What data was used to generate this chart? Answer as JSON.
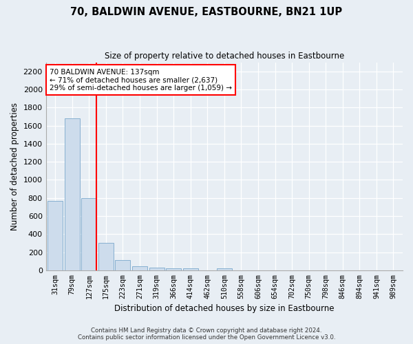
{
  "title": "70, BALDWIN AVENUE, EASTBOURNE, BN21 1UP",
  "subtitle": "Size of property relative to detached houses in Eastbourne",
  "xlabel": "Distribution of detached houses by size in Eastbourne",
  "ylabel": "Number of detached properties",
  "categories": [
    "31sqm",
    "79sqm",
    "127sqm",
    "175sqm",
    "223sqm",
    "271sqm",
    "319sqm",
    "366sqm",
    "414sqm",
    "462sqm",
    "510sqm",
    "558sqm",
    "606sqm",
    "654sqm",
    "702sqm",
    "750sqm",
    "798sqm",
    "846sqm",
    "894sqm",
    "941sqm",
    "989sqm"
  ],
  "values": [
    770,
    1680,
    800,
    300,
    110,
    45,
    32,
    25,
    22,
    0,
    22,
    0,
    0,
    0,
    0,
    0,
    0,
    0,
    0,
    0,
    0
  ],
  "bar_color": "#cddcec",
  "bar_edge_color": "#7aa8cc",
  "annotation_title": "70 BALDWIN AVENUE: 137sqm",
  "annotation_line1": "← 71% of detached houses are smaller (2,637)",
  "annotation_line2": "29% of semi-detached houses are larger (1,059) →",
  "ylim": [
    0,
    2300
  ],
  "yticks": [
    0,
    200,
    400,
    600,
    800,
    1000,
    1200,
    1400,
    1600,
    1800,
    2000,
    2200
  ],
  "footer_line1": "Contains HM Land Registry data © Crown copyright and database right 2024.",
  "footer_line2": "Contains public sector information licensed under the Open Government Licence v3.0.",
  "bg_color": "#e8eef4",
  "plot_bg_color": "#e8eef4"
}
